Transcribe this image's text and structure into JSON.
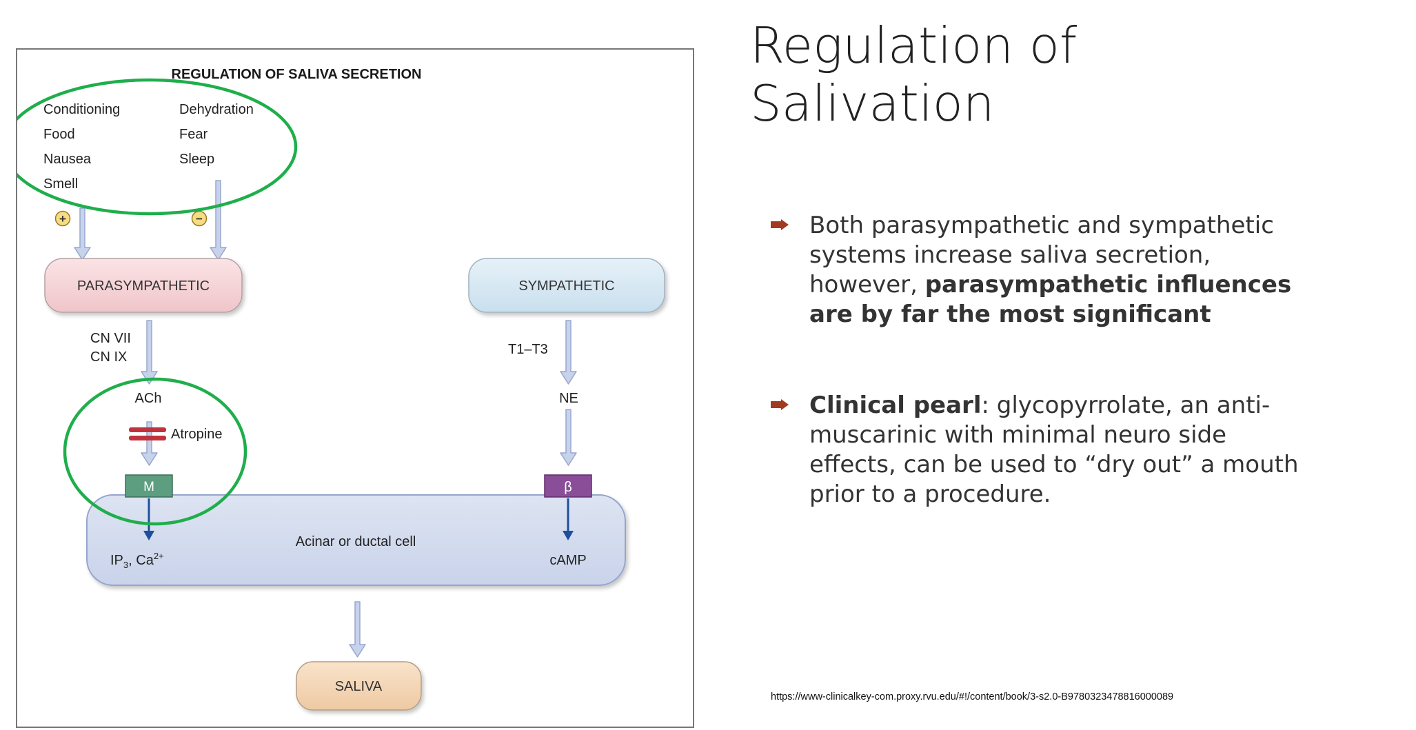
{
  "slide": {
    "title_line1": "Regulation of",
    "title_line2": "Salivation",
    "bullets": [
      {
        "text_1": "Both parasympathetic and sympathetic systems increase saliva secretion, however, ",
        "bold_1": "parasympathetic influences are by far the most significant"
      },
      {
        "bold_1": "Clinical pearl",
        "text_1": ": glycopyrrolate, an anti-muscarinic with minimal neuro side effects, can be used to “dry out” a mouth prior to a procedure."
      }
    ],
    "source_url": "https://www-clinicalkey-com.proxy.rvu.edu/#!/content/book/3-s2.0-B9780323478816000089"
  },
  "diagram": {
    "title": "REGULATION OF SALIVA SECRETION",
    "stimulatory_factors": [
      "Conditioning",
      "Food",
      "Nausea",
      "Smell"
    ],
    "inhibitory_factors": [
      "Dehydration",
      "Fear",
      "Sleep"
    ],
    "plus_sign": "+",
    "minus_sign": "−",
    "parasympathetic": {
      "label": "PARASYMPATHETIC",
      "nerves": [
        "CN VII",
        "CN IX"
      ],
      "transmitter": "ACh",
      "blocker": "Atropine",
      "receptor": "M",
      "messenger_main": "IP",
      "messenger_sub": "3",
      "messenger_mid": ", Ca",
      "messenger_sup": "2+"
    },
    "sympathetic": {
      "label": "SYMPATHETIC",
      "nerves": "T1–T3",
      "transmitter": "NE",
      "receptor": "β",
      "messenger": "cAMP"
    },
    "cell_label": "Acinar or ductal cell",
    "output_label": "SALIVA",
    "colors": {
      "parasympathetic_box": "#f6d5d8",
      "sympathetic_box": "#d6e8f2",
      "cell": "#d4dcee",
      "saliva_box": "#f4d7b8",
      "m_receptor": "#5e9e80",
      "beta_receptor": "#8a4e98",
      "atropine_block": "#c0333d",
      "highlight_circle": "#1fae4b",
      "signal_arrow": "#1d4f9c",
      "flow_arrow": "#c7d2eb"
    }
  }
}
